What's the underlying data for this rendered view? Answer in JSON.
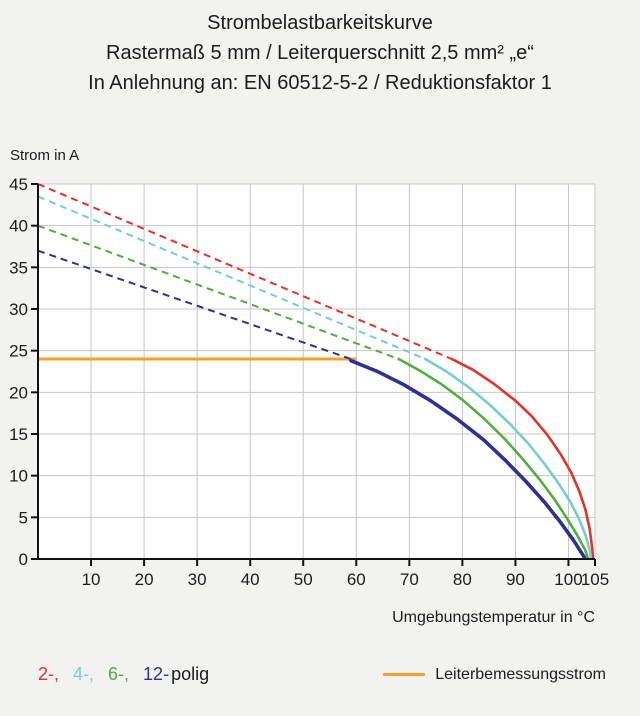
{
  "title": {
    "line1": "Strombelastbarkeitskurve",
    "line2": "Rastermaß 5 mm / Leiterquerschnitt 2,5 mm² „e“",
    "line3": "In Anlehnung an: EN 60512-5-2 / Reduktionsfaktor 1"
  },
  "chart_data": {
    "type": "line",
    "title": "Strombelastbarkeitskurve",
    "ylabel": "Strom in A",
    "xlabel": "Umgebungstemperatur in °C",
    "xlim": [
      0,
      105
    ],
    "ylim": [
      0,
      45
    ],
    "x_ticks": [
      10,
      20,
      30,
      40,
      50,
      60,
      70,
      80,
      90,
      100,
      105
    ],
    "y_ticks": [
      0,
      5,
      10,
      15,
      20,
      25,
      30,
      35,
      40,
      45
    ],
    "grid": true,
    "grid_color": "#c6c6c6",
    "axis_color": "#111111",
    "plot_bg": "#ffffff",
    "series": [
      {
        "name": "2-polig",
        "color": "#e53228",
        "dashed_points": [
          [
            0,
            45
          ],
          [
            78,
            24
          ]
        ],
        "solid_points": [
          [
            78,
            24
          ],
          [
            82,
            22.7
          ],
          [
            86,
            21.0
          ],
          [
            90,
            19.0
          ],
          [
            93,
            17.2
          ],
          [
            96,
            14.9
          ],
          [
            98.5,
            12.6
          ],
          [
            100.5,
            10.4
          ],
          [
            102,
            8.2
          ],
          [
            103.2,
            5.9
          ],
          [
            104,
            3.6
          ],
          [
            104.5,
            1.2
          ],
          [
            104.6,
            0.2
          ]
        ],
        "solid_width": 2.6
      },
      {
        "name": "4-polig",
        "color": "#74cfcc",
        "dashed_points": [
          [
            0,
            43.5
          ],
          [
            73,
            24
          ]
        ],
        "solid_points": [
          [
            73,
            24
          ],
          [
            77,
            22.5
          ],
          [
            81,
            20.7
          ],
          [
            85,
            18.6
          ],
          [
            89,
            16.2
          ],
          [
            92.5,
            13.8
          ],
          [
            95.5,
            11.4
          ],
          [
            98,
            9.2
          ],
          [
            100.3,
            6.9
          ],
          [
            102,
            4.8
          ],
          [
            103.3,
            2.7
          ],
          [
            104.1,
            0.8
          ],
          [
            104.2,
            0.2
          ]
        ],
        "solid_width": 2.6
      },
      {
        "name": "6-polig",
        "color": "#4fae3d",
        "dashed_points": [
          [
            0,
            40
          ],
          [
            68,
            24
          ]
        ],
        "solid_points": [
          [
            68,
            24
          ],
          [
            72,
            22.6
          ],
          [
            76,
            21.0
          ],
          [
            80,
            19.1
          ],
          [
            84,
            16.9
          ],
          [
            88,
            14.4
          ],
          [
            91.5,
            11.9
          ],
          [
            94.5,
            9.6
          ],
          [
            97.3,
            7.2
          ],
          [
            99.7,
            4.9
          ],
          [
            101.7,
            2.8
          ],
          [
            103.2,
            1.0
          ],
          [
            103.6,
            0.2
          ]
        ],
        "solid_width": 2.6
      },
      {
        "name": "12-polig",
        "color": "#2e3192",
        "dashed_points": [
          [
            0,
            37
          ],
          [
            59,
            24
          ]
        ],
        "solid_points": [
          [
            59,
            23.8
          ],
          [
            64,
            22.5
          ],
          [
            69,
            20.9
          ],
          [
            74,
            19.0
          ],
          [
            79,
            16.8
          ],
          [
            84,
            14.3
          ],
          [
            88,
            11.9
          ],
          [
            92,
            9.3
          ],
          [
            95.5,
            6.8
          ],
          [
            98.5,
            4.4
          ],
          [
            101,
            2.2
          ],
          [
            102.7,
            0.5
          ],
          [
            103,
            0.2
          ]
        ],
        "solid_width": 3.6
      }
    ],
    "rated_current": {
      "label": "Leiterbemessungsstrom",
      "value": 24,
      "x_range": [
        0,
        60
      ],
      "color": "#f5a02c",
      "width": 3
    }
  },
  "legend": {
    "poles": [
      {
        "label": "2-,",
        "color": "#e53228"
      },
      {
        "label": "4-,",
        "color": "#74cfcc"
      },
      {
        "label": "6-,",
        "color": "#4fae3d"
      },
      {
        "label": "12-",
        "color": "#2e3192"
      }
    ],
    "poles_suffix": "polig",
    "rated_label": "Leiterbemessungsstrom"
  }
}
